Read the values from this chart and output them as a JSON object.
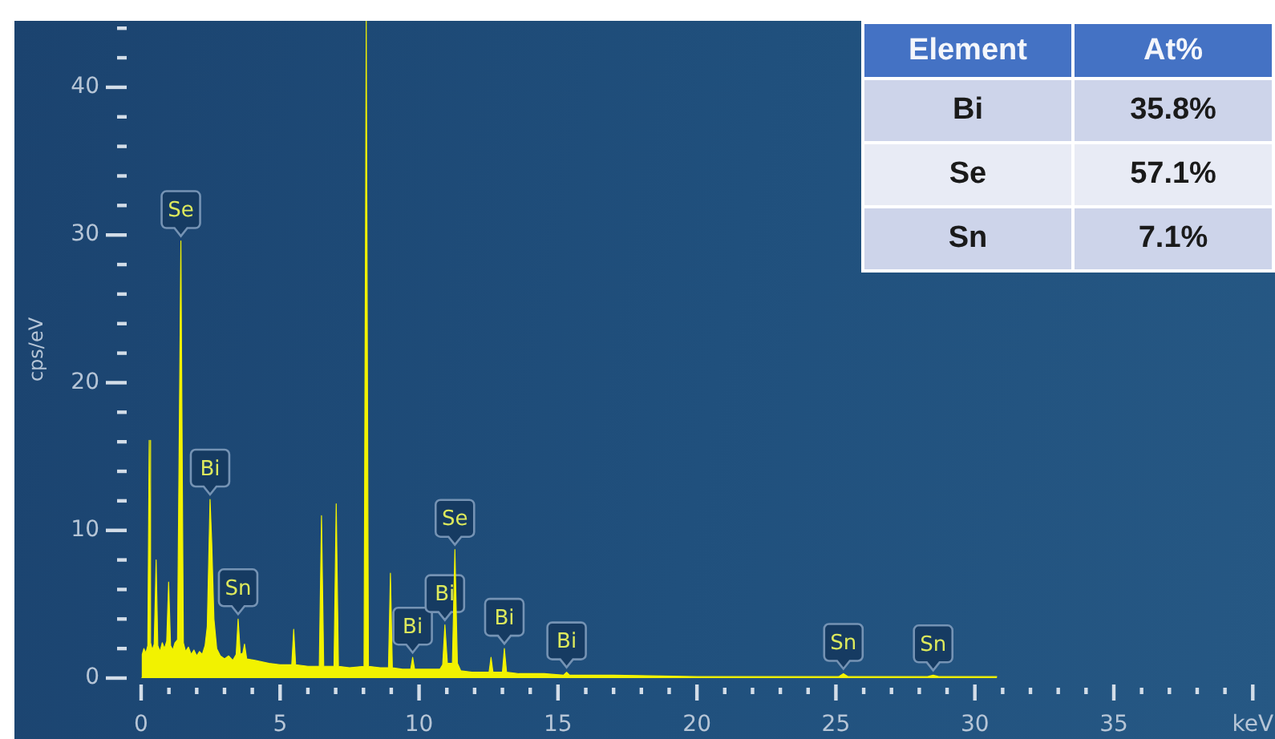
{
  "chart_data": [
    {
      "type": "area",
      "ylabel": "cps/eV",
      "x": [
        0,
        0.04,
        0.1,
        0.17,
        0.24,
        0.29,
        0.34,
        0.4,
        0.47,
        0.54,
        0.6,
        0.68,
        0.76,
        0.84,
        0.92,
        0.99,
        1.06,
        1.14,
        1.22,
        1.31,
        1.43,
        1.52,
        1.6,
        1.7,
        1.8,
        1.9,
        2.0,
        2.1,
        2.2,
        2.3,
        2.38,
        2.48,
        2.54,
        2.62,
        2.72,
        2.85,
        3.0,
        3.15,
        3.3,
        3.42,
        3.49,
        3.57,
        3.66,
        3.72,
        3.8,
        4.1,
        4.6,
        5.0,
        5.42,
        5.49,
        5.56,
        6.0,
        6.41,
        6.49,
        6.57,
        6.94,
        7.02,
        7.1,
        7.5,
        8.02,
        8.1,
        8.18,
        8.6,
        8.9,
        8.97,
        9.04,
        9.4,
        9.7,
        9.77,
        9.84,
        10.3,
        10.75,
        10.85,
        10.93,
        11.02,
        11.2,
        11.29,
        11.38,
        11.5,
        11.9,
        12.3,
        12.52,
        12.59,
        12.66,
        13.0,
        13.07,
        13.15,
        13.6,
        14.5,
        15.2,
        15.31,
        15.42,
        17,
        20,
        23,
        25.1,
        25.27,
        25.44,
        28.3,
        28.5,
        28.7,
        30.8
      ],
      "series": [
        {
          "color": "#f2f200",
          "values": [
            0,
            1.6,
            2.0,
            1.7,
            2.2,
            16.1,
            2.4,
            1.9,
            2.3,
            8.0,
            2.2,
            1.8,
            2.4,
            2.0,
            2.5,
            6.5,
            2.2,
            1.9,
            2.4,
            2.6,
            29.6,
            2.4,
            1.8,
            2.1,
            1.6,
            1.9,
            1.5,
            1.8,
            1.6,
            2.2,
            3.5,
            12.1,
            9.2,
            4.0,
            2.0,
            1.5,
            1.3,
            1.5,
            1.2,
            1.6,
            4.0,
            1.6,
            1.7,
            2.3,
            1.3,
            1.2,
            1.0,
            0.9,
            0.9,
            3.3,
            0.9,
            0.8,
            0.8,
            11.0,
            0.8,
            0.8,
            11.8,
            0.8,
            0.7,
            0.8,
            44.5,
            0.8,
            0.7,
            0.7,
            7.1,
            0.7,
            0.6,
            0.6,
            1.4,
            0.6,
            0.6,
            0.6,
            0.9,
            3.6,
            1.0,
            1.0,
            8.7,
            1.0,
            0.5,
            0.4,
            0.4,
            0.4,
            1.4,
            0.4,
            0.4,
            2.0,
            0.4,
            0.3,
            0.3,
            0.2,
            0.4,
            0.2,
            0.2,
            0.1,
            0.1,
            0.1,
            0.3,
            0.1,
            0.1,
            0.2,
            0.1,
            0.1
          ]
        }
      ],
      "xlim": [
        0,
        40.8
      ],
      "ylim": [
        0,
        44.5
      ],
      "xticks": [
        0,
        {
          "value": 1,
          "label": null
        },
        {
          "value": 2,
          "label": null
        },
        {
          "value": 3,
          "label": null
        },
        {
          "value": 4,
          "label": null
        },
        5,
        {
          "value": 6,
          "label": null
        },
        {
          "value": 7,
          "label": null
        },
        {
          "value": 8,
          "label": null
        },
        {
          "value": 9,
          "label": null
        },
        10,
        {
          "value": 11,
          "label": null
        },
        {
          "value": 12,
          "label": null
        },
        {
          "value": 13,
          "label": null
        },
        {
          "value": 14,
          "label": null
        },
        15,
        {
          "value": 16,
          "label": null
        },
        {
          "value": 17,
          "label": null
        },
        {
          "value": 18,
          "label": null
        },
        {
          "value": 19,
          "label": null
        },
        20,
        {
          "value": 21,
          "label": null
        },
        {
          "value": 22,
          "label": null
        },
        {
          "value": 23,
          "label": null
        },
        {
          "value": 24,
          "label": null
        },
        25,
        {
          "value": 26,
          "label": null
        },
        {
          "value": 27,
          "label": null
        },
        {
          "value": 28,
          "label": null
        },
        {
          "value": 29,
          "label": null
        },
        30,
        {
          "value": 31,
          "label": null
        },
        {
          "value": 32,
          "label": null
        },
        {
          "value": 33,
          "label": null
        },
        {
          "value": 34,
          "label": null
        },
        35,
        {
          "value": 36,
          "label": null
        },
        {
          "value": 37,
          "label": null
        },
        {
          "value": 38,
          "label": null
        },
        {
          "value": 39,
          "label": null
        },
        {
          "value": 40,
          "label": "keV"
        }
      ],
      "yticks": [
        0,
        {
          "value": 2,
          "label": null
        },
        {
          "value": 4,
          "label": null
        },
        {
          "value": 6,
          "label": null
        },
        {
          "value": 8,
          "label": null
        },
        10,
        {
          "value": 12,
          "label": null
        },
        {
          "value": 14,
          "label": null
        },
        {
          "value": 16,
          "label": null
        },
        {
          "value": 18,
          "label": null
        },
        20,
        {
          "value": 22,
          "label": null
        },
        {
          "value": 24,
          "label": null
        },
        {
          "value": 26,
          "label": null
        },
        {
          "value": 28,
          "label": null
        },
        30,
        {
          "value": 32,
          "label": null
        },
        {
          "value": 34,
          "label": null
        },
        {
          "value": 36,
          "label": null
        },
        {
          "value": 38,
          "label": null
        },
        40,
        {
          "value": 42,
          "label": null
        },
        {
          "value": 44,
          "label": null
        }
      ],
      "annotations": [
        {
          "text": "Se",
          "x": 1.43,
          "y": 29.6
        },
        {
          "text": "Bi",
          "x": 2.48,
          "y": 12.1
        },
        {
          "text": "Sn",
          "x": 3.49,
          "y": 4.0
        },
        {
          "text": "Bi",
          "x": 9.77,
          "y": 1.4
        },
        {
          "text": "Bi",
          "x": 10.93,
          "y": 3.6
        },
        {
          "text": "Se",
          "x": 11.29,
          "y": 8.7
        },
        {
          "text": "Bi",
          "x": 13.07,
          "y": 2.0
        },
        {
          "text": "Bi",
          "x": 15.31,
          "y": 0.4
        },
        {
          "text": "Sn",
          "x": 25.27,
          "y": 0.3
        },
        {
          "text": "Sn",
          "x": 28.5,
          "y": 0.2
        }
      ]
    },
    {
      "type": "other",
      "annotations": [
        "Element",
        "At%",
        "Bi",
        "35.8%",
        "Se",
        "57.1%",
        "Sn",
        "7.1%"
      ]
    }
  ]
}
